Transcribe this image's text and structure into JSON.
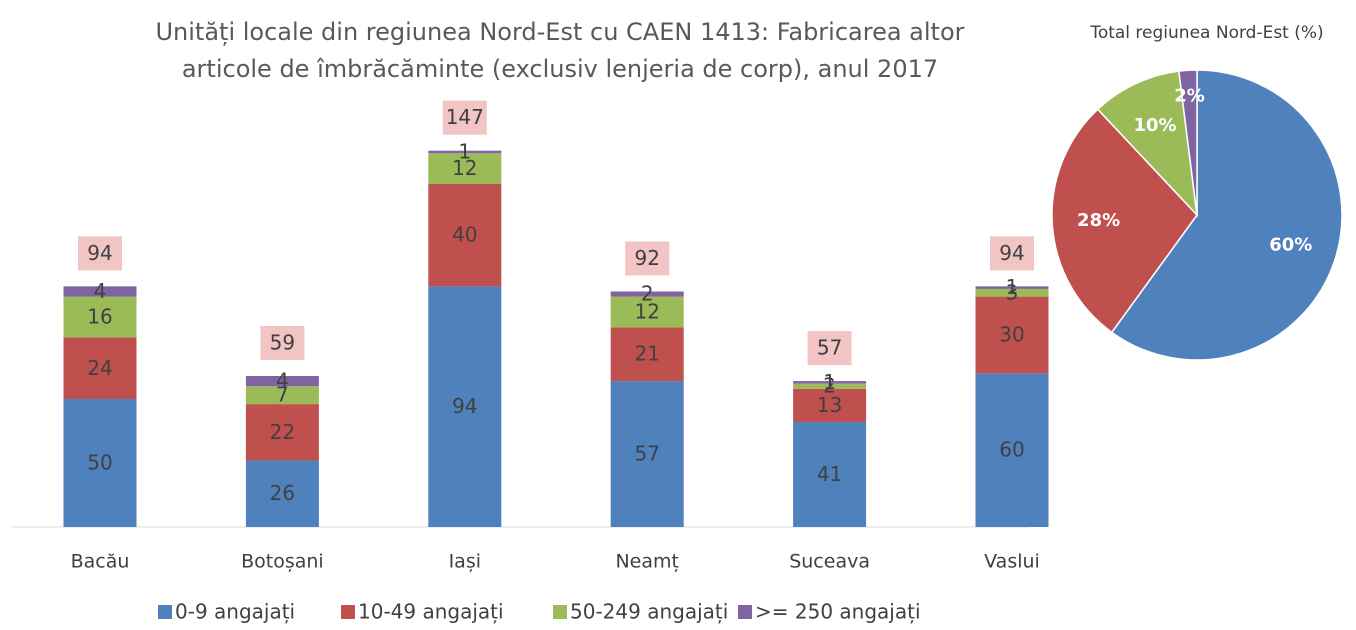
{
  "chart_data": [
    {
      "type": "bar",
      "title": "Unități locale din regiunea Nord-Est cu CAEN 1413: Fabricarea altor articole de îmbrăcăminte (exclusiv lenjeria de corp), anul 2017",
      "categories": [
        "Bacău",
        "Botoșani",
        "Iași",
        "Neamț",
        "Suceava",
        "Vaslui"
      ],
      "series": [
        {
          "name": "0-9 angajați",
          "color": "#4f81bd",
          "values": [
            50,
            26,
            94,
            57,
            41,
            60
          ]
        },
        {
          "name": "10-49 angajați",
          "color": "#c0504d",
          "values": [
            24,
            22,
            40,
            21,
            13,
            30
          ]
        },
        {
          "name": "50-249 angajați",
          "color": "#9bbb59",
          "values": [
            16,
            7,
            12,
            12,
            2,
            3
          ]
        },
        {
          "name": ">= 250 angajați",
          "color": "#8064a2",
          "values": [
            4,
            4,
            1,
            2,
            1,
            1
          ]
        }
      ],
      "totals": [
        94,
        59,
        147,
        92,
        57,
        94
      ],
      "ylim": [
        0,
        160
      ],
      "stacked": true,
      "legend": "bottom"
    },
    {
      "type": "pie",
      "title": "Total regiunea Nord-Est (%)",
      "categories": [
        "0-9 angajați",
        "10-49 angajați",
        "50-249 angajați",
        ">= 250 angajați"
      ],
      "values": [
        60,
        28,
        10,
        2
      ],
      "value_labels": [
        "60%",
        "28%",
        "10%",
        "2%"
      ],
      "colors": [
        "#4f81bd",
        "#c0504d",
        "#9bbb59",
        "#8064a2"
      ]
    }
  ]
}
